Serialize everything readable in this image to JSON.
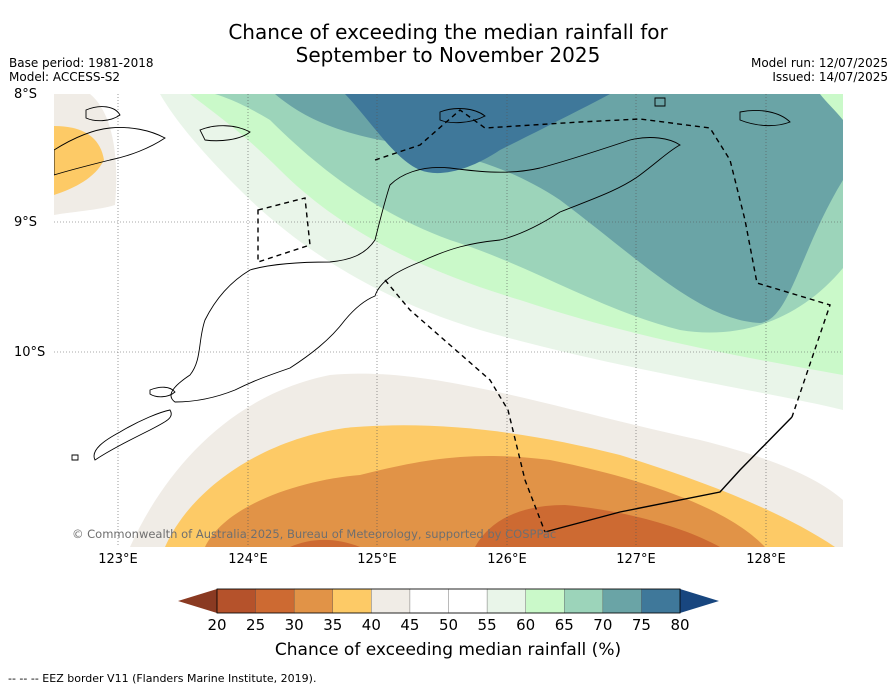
{
  "title": {
    "line1": "Chance of exceeding the median rainfall for",
    "line2": "September to November 2025"
  },
  "meta": {
    "base_period": "Base period: 1981-2018",
    "model": "Model: ACCESS-S2",
    "model_run": "Model run: 12/07/2025",
    "issued": "Issued: 14/07/2025"
  },
  "axes": {
    "lat_labels": [
      "8°S",
      "9°S",
      "10°S"
    ],
    "lon_labels": [
      "123°E",
      "124°E",
      "125°E",
      "126°E",
      "127°E",
      "128°E"
    ]
  },
  "copyright": "© Commonwealth of Australia 2025, Bureau of Meteorology, supported by COSPPac",
  "colorbar": {
    "ticks": [
      "20",
      "25",
      "30",
      "35",
      "40",
      "45",
      "50",
      "55",
      "60",
      "65",
      "70",
      "75",
      "80"
    ],
    "colors": [
      "#b5522b",
      "#cd6a32",
      "#e19347",
      "#fdca66",
      "#f0ece6",
      "#ffffff",
      "#ffffff",
      "#e9f5e9",
      "#caf9c9",
      "#9cd4ba",
      "#6aa4a6",
      "#3f789a",
      "#1b4f86"
    ],
    "under_color": "#8a3a22",
    "over_color": "#18467f",
    "label": "Chance of exceeding median rainfall (%)"
  },
  "footer": "-- -- -- EEZ border V11 (Flanders Marine Institute, 2019)."
}
